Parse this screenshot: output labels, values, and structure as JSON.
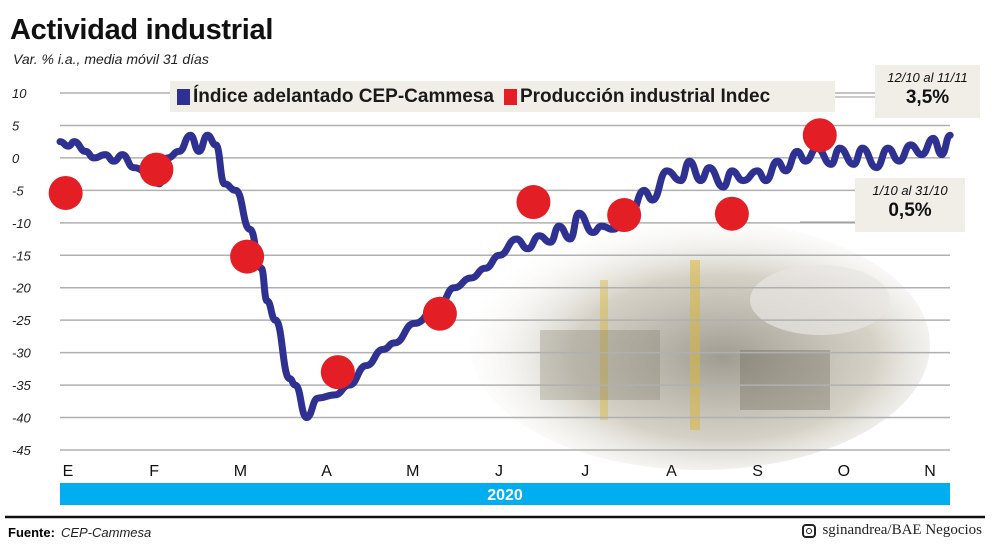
{
  "chart_data": {
    "type": "line",
    "title": "Actividad industrial",
    "subtitle": "Var. % i.a., media móvil 31 días",
    "year_label": "2020",
    "ylim": [
      -45,
      10
    ],
    "y_ticks": [
      10,
      5,
      0,
      -5,
      -10,
      -15,
      -20,
      -25,
      -30,
      -35,
      -40,
      -45
    ],
    "x_tick_labels": [
      "E",
      "F",
      "M",
      "A",
      "M",
      "J",
      "J",
      "A",
      "S",
      "O",
      "N"
    ],
    "grid": true,
    "legend_placement": "top",
    "series": [
      {
        "name": "Índice adelantado CEP-Cammesa",
        "color": "#2e3192",
        "points": [
          [
            "2020-01-01",
            2.5
          ],
          [
            "2020-01-04",
            1.8
          ],
          [
            "2020-01-06",
            2.5
          ],
          [
            "2020-01-10",
            1
          ],
          [
            "2020-01-13",
            0
          ],
          [
            "2020-01-17",
            0.5
          ],
          [
            "2020-01-20",
            -0.5
          ],
          [
            "2020-01-23",
            0.5
          ],
          [
            "2020-01-27",
            -1.5
          ],
          [
            "2020-02-02",
            -2.5
          ],
          [
            "2020-02-05",
            -4
          ],
          [
            "2020-02-08",
            0
          ],
          [
            "2020-02-12",
            1
          ],
          [
            "2020-02-16",
            3.5
          ],
          [
            "2020-02-19",
            1
          ],
          [
            "2020-02-22",
            3.5
          ],
          [
            "2020-02-25",
            2
          ],
          [
            "2020-02-28",
            -4
          ],
          [
            "2020-03-03",
            -5
          ],
          [
            "2020-03-08",
            -11
          ],
          [
            "2020-03-12",
            -17
          ],
          [
            "2020-03-14",
            -22
          ],
          [
            "2020-03-17",
            -25
          ],
          [
            "2020-03-22",
            -34
          ],
          [
            "2020-03-24",
            -35
          ],
          [
            "2020-03-28",
            -40
          ],
          [
            "2020-04-01",
            -37
          ],
          [
            "2020-04-07",
            -36.5
          ],
          [
            "2020-04-12",
            -35
          ],
          [
            "2020-04-18",
            -32
          ],
          [
            "2020-04-24",
            -29.5
          ],
          [
            "2020-04-28",
            -28.5
          ],
          [
            "2020-05-05",
            -25.5
          ],
          [
            "2020-05-14",
            -22.5
          ],
          [
            "2020-05-19",
            -20
          ],
          [
            "2020-05-25",
            -18.5
          ],
          [
            "2020-05-30",
            -17
          ],
          [
            "2020-06-04",
            -15
          ],
          [
            "2020-06-10",
            -12.5
          ],
          [
            "2020-06-14",
            -14
          ],
          [
            "2020-06-18",
            -12
          ],
          [
            "2020-06-22",
            -13
          ],
          [
            "2020-06-25",
            -10.5
          ],
          [
            "2020-06-29",
            -12.5
          ],
          [
            "2020-07-02",
            -8.5
          ],
          [
            "2020-07-07",
            -11.5
          ],
          [
            "2020-07-10",
            -10.5
          ],
          [
            "2020-07-14",
            -11
          ],
          [
            "2020-07-20",
            -9
          ],
          [
            "2020-07-25",
            -5
          ],
          [
            "2020-07-28",
            -6.5
          ],
          [
            "2020-08-02",
            -2
          ],
          [
            "2020-08-07",
            -3.5
          ],
          [
            "2020-08-10",
            -0.5
          ],
          [
            "2020-08-14",
            -3.5
          ],
          [
            "2020-08-17",
            -1.5
          ],
          [
            "2020-08-22",
            -4.5
          ],
          [
            "2020-08-25",
            -2
          ],
          [
            "2020-08-29",
            -3.5
          ],
          [
            "2020-09-03",
            -2
          ],
          [
            "2020-09-06",
            -3.5
          ],
          [
            "2020-09-10",
            -0.5
          ],
          [
            "2020-09-13",
            -2
          ],
          [
            "2020-09-17",
            1
          ],
          [
            "2020-09-20",
            -0.5
          ],
          [
            "2020-09-24",
            1.5
          ],
          [
            "2020-09-29",
            -1
          ],
          [
            "2020-10-02",
            1.5
          ],
          [
            "2020-10-07",
            -1
          ],
          [
            "2020-10-10",
            1.5
          ],
          [
            "2020-10-15",
            -1.5
          ],
          [
            "2020-10-19",
            1.5
          ],
          [
            "2020-10-23",
            -0.5
          ],
          [
            "2020-10-27",
            2
          ],
          [
            "2020-10-31",
            0.5
          ],
          [
            "2020-11-04",
            3
          ],
          [
            "2020-11-07",
            0.5
          ],
          [
            "2020-11-10",
            3.5
          ]
        ]
      },
      {
        "name": "Producción industrial Indec",
        "color": "#e31e24",
        "style": "dots",
        "months": [
          "E",
          "F",
          "M",
          "A",
          "M",
          "J",
          "J",
          "A",
          "S"
        ],
        "values": [
          -5.4,
          -1.8,
          -15.2,
          -33,
          -24,
          -6.8,
          -8.8,
          -8.6,
          3.5
        ]
      }
    ],
    "annotations": [
      {
        "period": "12/10 al 11/11",
        "value": "3,5%"
      },
      {
        "period": "1/10 al 31/10",
        "value": "0,5%"
      }
    ]
  },
  "footer": {
    "source_label": "Fuente:",
    "source_value": "CEP-Cammesa",
    "credit": "sginandrea/BAE Negocios",
    "credit_icon": "instagram-icon"
  },
  "colors": {
    "year_bar": "#00aeef",
    "grid": "#b0b0b0",
    "annotation_bg": "#f1eee8"
  }
}
